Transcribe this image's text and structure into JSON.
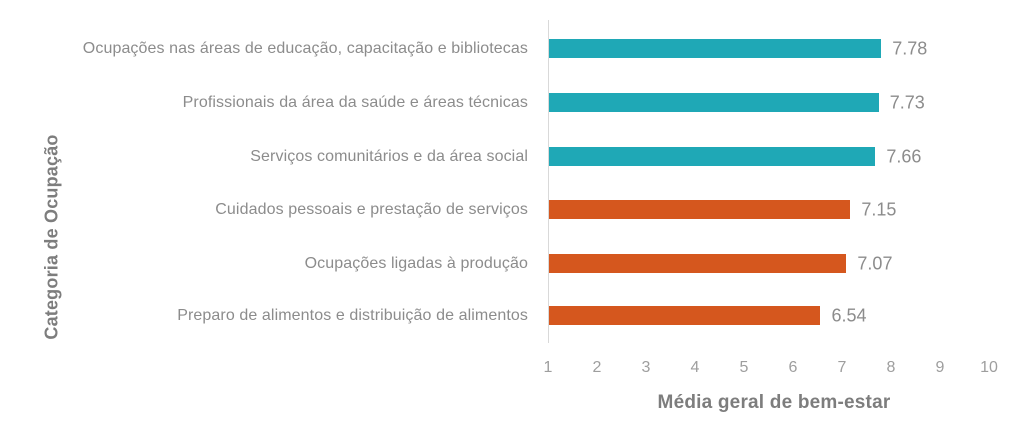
{
  "chart_data": {
    "type": "bar",
    "orientation": "horizontal",
    "categories": [
      "Ocupações nas áreas de educação, capacitação e bibliotecas",
      "Profissionais da área da saúde e áreas técnicas",
      "Serviços comunitários e da área social",
      "Cuidados pessoais e prestação de serviços",
      "Ocupações ligadas à produção",
      "Preparo de alimentos e distribuição de alimentos"
    ],
    "values": [
      7.78,
      7.73,
      7.66,
      7.15,
      7.07,
      6.54
    ],
    "value_labels": [
      "7.78",
      "7.73",
      "7.66",
      "7.15",
      "7.07",
      "6.54"
    ],
    "bar_colors": [
      "#1FA8B6",
      "#1FA8B6",
      "#1FA8B6",
      "#D5571E",
      "#D5571E",
      "#D5571E"
    ],
    "xlabel": "Média geral de bem-estar",
    "ylabel": "Categoria de Ocupação",
    "x_ticks": [
      "1",
      "2",
      "3",
      "4",
      "5",
      "6",
      "7",
      "8",
      "9",
      "10"
    ],
    "xlim": [
      1,
      10
    ],
    "grid": "off",
    "legend": "none",
    "colors": {
      "teal": "#1FA8B6",
      "orange": "#D5571E",
      "axis_line": "#D9D9D9",
      "label_text": "#8C8C8C",
      "tick_text": "#9E9E9E",
      "axis_title_text": "#7D7D7D"
    }
  }
}
